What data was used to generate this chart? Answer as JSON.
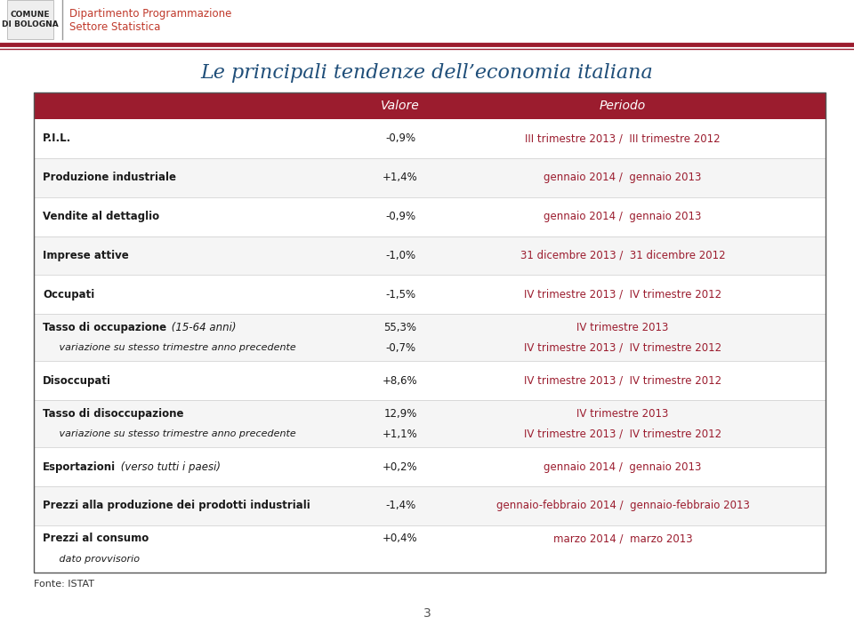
{
  "title": "Le principali tendenze dell’economia italiana",
  "title_color": "#1f4e79",
  "header_bg": "#9b1c2e",
  "header_text_color": "#ffffff",
  "periodo_color": "#9b1c2e",
  "fonte_text": "Fonte: ISTAT",
  "page_number": "3",
  "dept_text1": "Dipartimento Programmazione",
  "dept_text2": "Settore Statistica",
  "dept_color": "#c0392b",
  "valore_header": "Valore",
  "periodo_header": "Periodo",
  "rows": [
    {
      "label": "P.I.L.",
      "label_suffix": null,
      "sub_label": null,
      "value": "-0,9%",
      "sub_value": null,
      "periodo": "III trimestre 2013 /  III trimestre 2012",
      "sub_periodo": null
    },
    {
      "label": "Produzione industriale",
      "label_suffix": null,
      "sub_label": null,
      "value": "+1,4%",
      "sub_value": null,
      "periodo": "gennaio 2014 /  gennaio 2013",
      "sub_periodo": null
    },
    {
      "label": "Vendite al dettaglio",
      "label_suffix": null,
      "sub_label": null,
      "value": "-0,9%",
      "sub_value": null,
      "periodo": "gennaio 2014 /  gennaio 2013",
      "sub_periodo": null
    },
    {
      "label": "Imprese attive",
      "label_suffix": null,
      "sub_label": null,
      "value": "-1,0%",
      "sub_value": null,
      "periodo": "31 dicembre 2013 /  31 dicembre 2012",
      "sub_periodo": null
    },
    {
      "label": "Occupati",
      "label_suffix": null,
      "sub_label": null,
      "value": "-1,5%",
      "sub_value": null,
      "periodo": "IV trimestre 2013 /  IV trimestre 2012",
      "sub_periodo": null
    },
    {
      "label": "Tasso di occupazione",
      "label_suffix": " (15-64 anni)",
      "sub_label": "   variazione su stesso trimestre anno precedente",
      "value": "55,3%",
      "sub_value": "-0,7%",
      "periodo": "IV trimestre 2013",
      "sub_periodo": "IV trimestre 2013 /  IV trimestre 2012"
    },
    {
      "label": "Disoccupati",
      "label_suffix": null,
      "sub_label": null,
      "value": "+8,6%",
      "sub_value": null,
      "periodo": "IV trimestre 2013 /  IV trimestre 2012",
      "sub_periodo": null
    },
    {
      "label": "Tasso di disoccupazione",
      "label_suffix": null,
      "sub_label": "   variazione su stesso trimestre anno precedente",
      "value": "12,9%",
      "sub_value": "+1,1%",
      "periodo": "IV trimestre 2013",
      "sub_periodo": "IV trimestre 2013 /  IV trimestre 2012"
    },
    {
      "label": "Esportazioni",
      "label_suffix": " (verso tutti i paesi)",
      "sub_label": null,
      "value": "+0,2%",
      "sub_value": null,
      "periodo": "gennaio 2014 /  gennaio 2013",
      "sub_periodo": null
    },
    {
      "label": "Prezzi alla produzione dei prodotti industriali",
      "label_suffix": null,
      "sub_label": null,
      "value": "-1,4%",
      "sub_value": null,
      "periodo": "gennaio-febbraio 2014 /  gennaio-febbraio 2013",
      "sub_periodo": null
    },
    {
      "label": "Prezzi al consumo",
      "label_suffix": null,
      "sub_label": "   dato provvisorio",
      "value": "+0,4%",
      "sub_value": null,
      "periodo": "marzo 2014 /  marzo 2013",
      "sub_periodo": null
    }
  ]
}
